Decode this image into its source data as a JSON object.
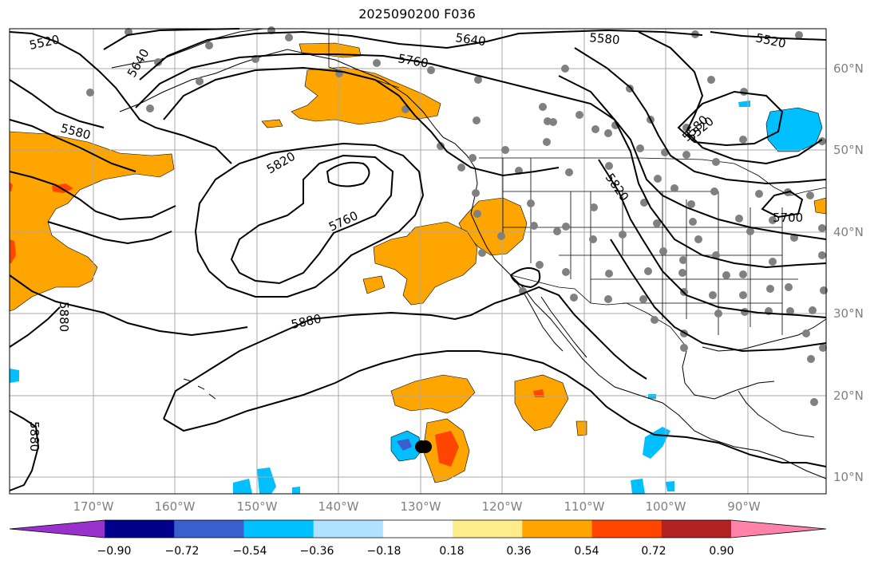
{
  "title": "2025090200 F036",
  "map": {
    "latitude_labels": [
      "60°N",
      "50°N",
      "40°N",
      "30°N",
      "20°N",
      "10°N"
    ],
    "longitude_labels": [
      "170°W",
      "160°W",
      "150°W",
      "140°W",
      "130°W",
      "120°W",
      "110°W",
      "100°W",
      "90°W"
    ],
    "contour_labels": [
      "5520",
      "5640",
      "5580",
      "5760",
      "5640",
      "5580",
      "5520",
      "5580",
      "5820",
      "5760",
      "5820",
      "5520",
      "5700",
      "5880",
      "5880",
      "5880"
    ],
    "stations_color": "#808080",
    "contour_color": "#000000"
  },
  "colorbar": {
    "ticks": [
      "−0.90",
      "−0.72",
      "−0.54",
      "−0.36",
      "−0.18",
      "0.18",
      "0.36",
      "0.54",
      "0.72",
      "0.90"
    ],
    "colors": [
      "#9932cc",
      "#00008b",
      "#3a5fcd",
      "#00bfff",
      "#b0e2ff",
      "#ffffff",
      "#ffec8b",
      "#ffa500",
      "#ff4500",
      "#b22222",
      "#ff82ab"
    ]
  }
}
